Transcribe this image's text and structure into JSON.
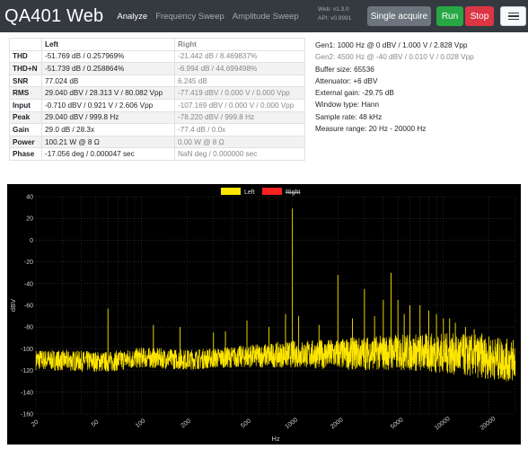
{
  "navbar": {
    "brand": "QA401 Web",
    "tabs": [
      {
        "label": "Analyze",
        "active": true
      },
      {
        "label": "Frequency Sweep",
        "active": false
      },
      {
        "label": "Amplitude Sweep",
        "active": false
      }
    ],
    "version_web": "Web: v1.3.0",
    "version_api": "API: v0.9991",
    "buttons": {
      "single_acquire": "Single acquire",
      "run": "Run",
      "stop": "Stop"
    }
  },
  "colors": {
    "left_series": "#ffe600",
    "right_series": "#ff2020",
    "plot_background": "#000000",
    "grid": "#555555"
  },
  "table": {
    "headers": [
      "",
      "Left",
      "Right"
    ],
    "rows": [
      {
        "label": "THD",
        "left": "-51.769 dB / 0.257969%",
        "right": "-21.442 dB / 8.469837%"
      },
      {
        "label": "THD+N",
        "left": "-51.739 dB / 0.258864%",
        "right": "-6.994 dB / 44.699498%"
      },
      {
        "label": "SNR",
        "left": "77.024 dB",
        "right": "6.245 dB"
      },
      {
        "label": "RMS",
        "left": "29.040 dBV / 28.313 V / 80.082 Vpp",
        "right": "-77.419 dBV / 0.000 V / 0.000 Vpp"
      },
      {
        "label": "Input",
        "left": "-0.710 dBV / 0.921 V / 2.606 Vpp",
        "right": "-107.169 dBV / 0.000 V / 0.000 Vpp"
      },
      {
        "label": "Peak",
        "left": "29.040 dBV / 999.8 Hz",
        "right": "-78.220 dBV / 999.8 Hz"
      },
      {
        "label": "Gain",
        "left": "29.0 dB / 28.3x",
        "right": "-77.4 dB / 0.0x"
      },
      {
        "label": "Power",
        "left": "100.21 W @ 8 Ω",
        "right": "0.00 W @ 8 Ω"
      },
      {
        "label": "Phase",
        "left": "-17.056 deg / 0.000047 sec",
        "right": "NaN deg / 0.000000 sec"
      }
    ]
  },
  "info": {
    "gen1": "Gen1: 1000 Hz @ 0 dBV / 1.000 V / 2.828 Vpp",
    "gen2": "Gen2: 4500 Hz @ -40 dBV / 0.010 V / 0.028 Vpp",
    "buffer": "Buffer size: 65536",
    "attenuator": "Attenuator: +6 dBV",
    "external_gain": "External gain: -29.75 dB",
    "window": "Window type: Hann",
    "sample_rate": "Sample rate: 48 kHz",
    "measure_range": "Measure range: 20 Hz - 20000 Hz"
  },
  "chart_data": {
    "type": "line",
    "xlabel": "Hz",
    "ylabel": "dBV",
    "xscale": "log",
    "xlim": [
      20,
      30000
    ],
    "ylim": [
      -160,
      40
    ],
    "x_ticks": [
      "20",
      "50",
      "100",
      "200",
      "500",
      "1000",
      "2000",
      "5000",
      "10000",
      "20000"
    ],
    "y_ticks": [
      "40",
      "20",
      "0",
      "-20",
      "-40",
      "-60",
      "-80",
      "-100",
      "-120",
      "-140",
      "-160"
    ],
    "grid": true,
    "legend_position": "top-center",
    "series": [
      {
        "name": "Left",
        "color": "#ffe600",
        "noise_floor": [
          [
            20,
            -110
          ],
          [
            60,
            -112
          ],
          [
            100,
            -108
          ],
          [
            200,
            -110
          ],
          [
            500,
            -107
          ],
          [
            1000,
            -105
          ],
          [
            2000,
            -105
          ],
          [
            5000,
            -103
          ],
          [
            10000,
            -104
          ],
          [
            20000,
            -108
          ],
          [
            30000,
            -112
          ]
        ],
        "peaks": [
          [
            60,
            -63
          ],
          [
            120,
            -78
          ],
          [
            180,
            -80
          ],
          [
            300,
            -85
          ],
          [
            360,
            -84
          ],
          [
            500,
            -74
          ],
          [
            700,
            -80
          ],
          [
            900,
            -68
          ],
          [
            1000,
            29
          ],
          [
            1100,
            -70
          ],
          [
            1500,
            -78
          ],
          [
            2000,
            -32
          ],
          [
            2500,
            -72
          ],
          [
            3000,
            -45
          ],
          [
            3500,
            -70
          ],
          [
            4000,
            -55
          ],
          [
            4500,
            -30
          ],
          [
            5000,
            -55
          ],
          [
            5500,
            -68
          ],
          [
            6000,
            -60
          ],
          [
            7000,
            -60
          ],
          [
            8000,
            -65
          ],
          [
            9000,
            -68
          ],
          [
            10000,
            -72
          ],
          [
            11000,
            -72
          ],
          [
            12000,
            -76
          ],
          [
            14000,
            -80
          ],
          [
            16000,
            -82
          ],
          [
            18000,
            -86
          ],
          [
            20000,
            -90
          ],
          [
            23000,
            -100
          ],
          [
            26000,
            -96
          ],
          [
            29000,
            -92
          ]
        ]
      },
      {
        "name": "Right",
        "color": "#ff2020",
        "hidden": true
      }
    ]
  }
}
